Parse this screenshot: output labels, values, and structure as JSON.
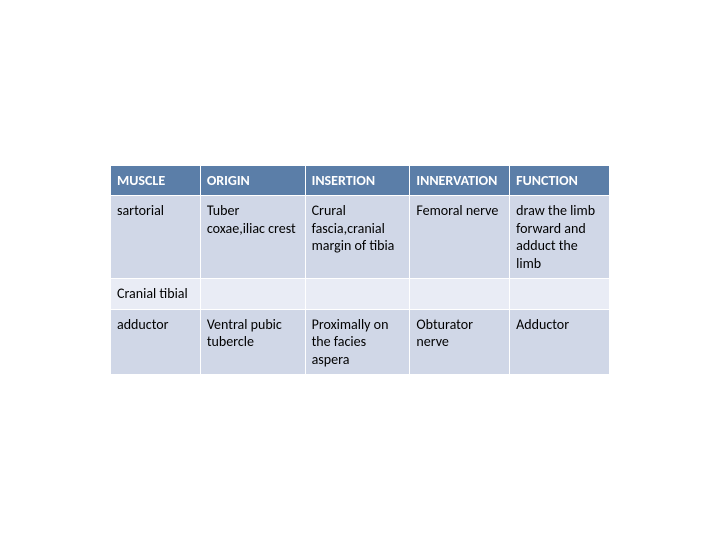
{
  "table": {
    "type": "table",
    "header_bg": "#5b7ea8",
    "header_fg": "#ffffff",
    "row_alt_a": "#d0d7e7",
    "row_alt_b": "#e9ecf5",
    "border_color": "#ffffff",
    "font_family": "Calibri",
    "header_fontsize": 14,
    "cell_fontsize": 14,
    "col_widths_pct": [
      18,
      21,
      21,
      20,
      20
    ],
    "columns": [
      "MUSCLE",
      "ORIGIN",
      "INSERTION",
      "INNERVATION",
      "FUNCTION"
    ],
    "rows": [
      [
        "sartorial",
        "Tuber coxae,iliac crest",
        "Crural fascia,cranial margin of tibia",
        "Femoral nerve",
        "draw the limb forward and adduct the limb"
      ],
      [
        "Cranial tibial",
        "",
        "",
        "",
        ""
      ],
      [
        "adductor",
        "Ventral pubic tubercle",
        "Proximally on the facies aspera",
        "Obturator nerve",
        "Adductor"
      ]
    ]
  }
}
